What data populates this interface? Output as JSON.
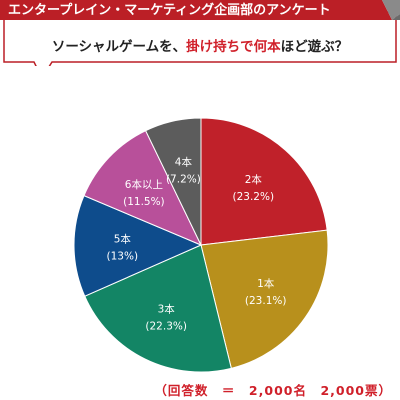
{
  "header": {
    "title": "エンタープレイン・マーケティング企画部のアンケート",
    "question_pre": "ソーシャルゲームを、",
    "question_highlight": "掛け持ちで何本",
    "question_post": "ほど遊ぶ？"
  },
  "colors": {
    "banner": "#bb1f26",
    "accent_text": "#d0202a"
  },
  "chart_data": {
    "type": "pie",
    "start": "12 o'clock",
    "direction": "clockwise",
    "slices": [
      {
        "label": "2本",
        "value": 23.2,
        "display": "(23.2%)",
        "color": "#c0212a"
      },
      {
        "label": "1本",
        "value": 23.1,
        "display": "(23.1%)",
        "color": "#b8901c"
      },
      {
        "label": "3本",
        "value": 22.3,
        "display": "(22.3%)",
        "color": "#138565"
      },
      {
        "label": "5本",
        "value": 13,
        "display": "(13%)",
        "color": "#0e4c8c"
      },
      {
        "label": "6本以上",
        "value": 11.5,
        "display": "(11.5%)",
        "color": "#b8509a"
      },
      {
        "label": "4本",
        "value": 7.2,
        "display": "(7.2%)",
        "color": "#5c5c5c"
      }
    ],
    "footer": "（回答数　＝　2,000名　2,000票）"
  }
}
